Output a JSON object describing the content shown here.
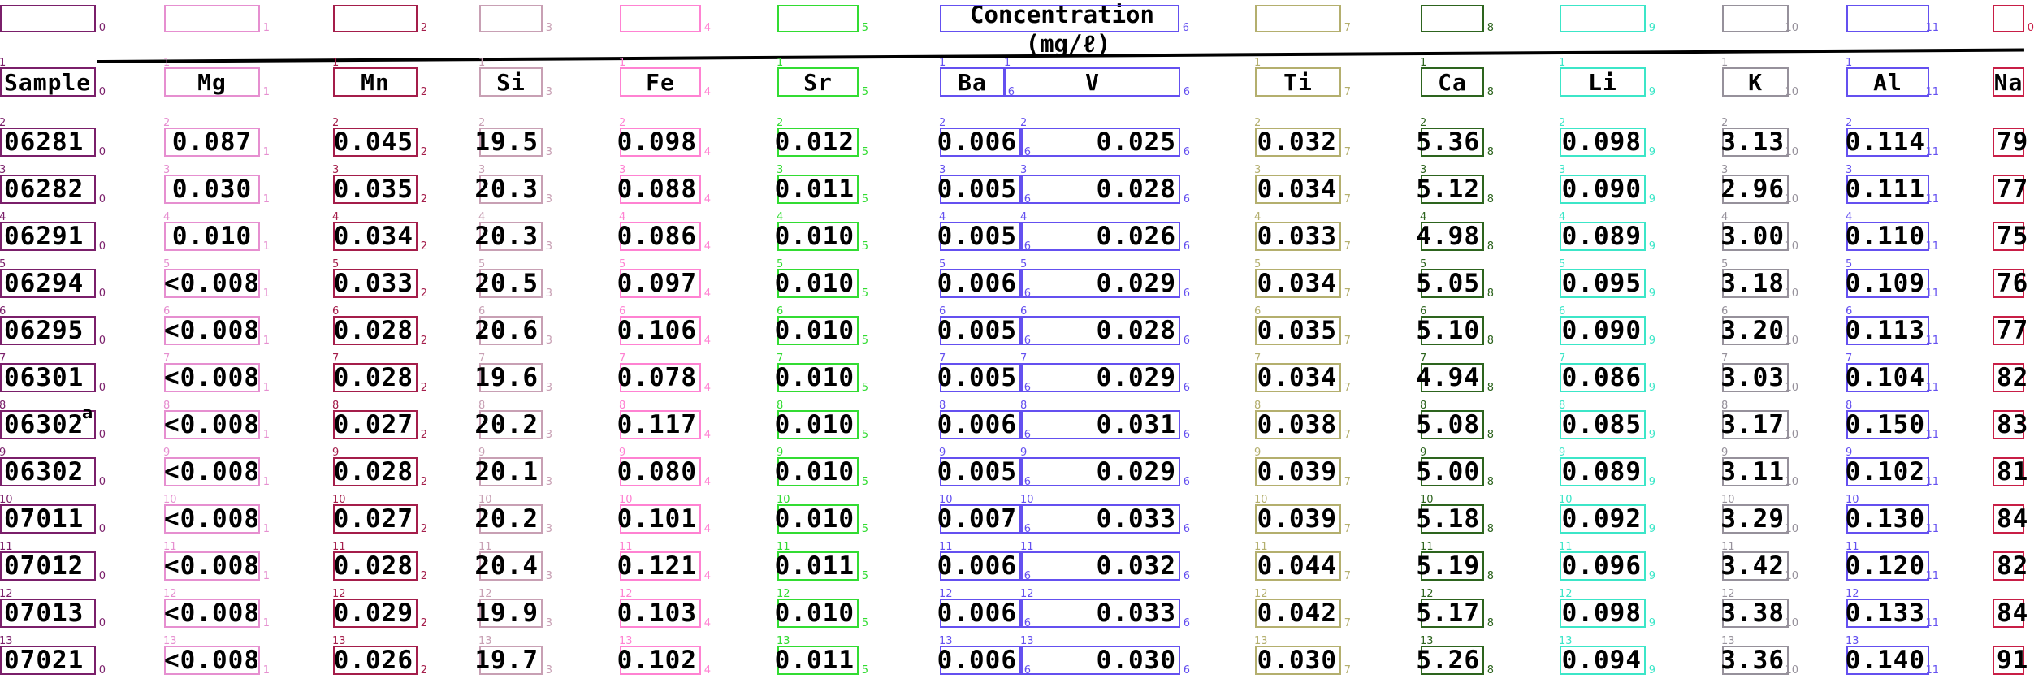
{
  "concentration_title": "Concentration",
  "concentration_unit": "(mg/ℓ)",
  "footnote_mark": "a",
  "palette": [
    "#7a1f6a",
    "#e68fd0",
    "#a41d4a",
    "#c8a0b4",
    "#ff82d2",
    "#32dc32",
    "#6450f0",
    "#b4af6e",
    "#2d641e",
    "#3ce6c8",
    "#96919b",
    "#6450f0",
    "#c81e46"
  ],
  "headers": [
    "Sample",
    "Mg",
    "Mn",
    "Si",
    "Fe",
    "Sr",
    "Ba",
    "V",
    "Ti",
    "Ca",
    "Li",
    "K",
    "Al",
    "Na"
  ],
  "rows": [
    [
      "06281",
      "0.087",
      "0.045",
      "19.5",
      "0.098",
      "0.012",
      "0.006",
      "0.025",
      "0.032",
      "5.36",
      "0.098",
      "3.13",
      "0.114",
      "79"
    ],
    [
      "06282",
      "0.030",
      "0.035",
      "20.3",
      "0.088",
      "0.011",
      "0.005",
      "0.028",
      "0.034",
      "5.12",
      "0.090",
      "2.96",
      "0.111",
      "77"
    ],
    [
      "06291",
      "0.010",
      "0.034",
      "20.3",
      "0.086",
      "0.010",
      "0.005",
      "0.026",
      "0.033",
      "4.98",
      "0.089",
      "3.00",
      "0.110",
      "75"
    ],
    [
      "06294",
      "<0.008",
      "0.033",
      "20.5",
      "0.097",
      "0.010",
      "0.006",
      "0.029",
      "0.034",
      "5.05",
      "0.095",
      "3.18",
      "0.109",
      "76"
    ],
    [
      "06295",
      "<0.008",
      "0.028",
      "20.6",
      "0.106",
      "0.010",
      "0.005",
      "0.028",
      "0.035",
      "5.10",
      "0.090",
      "3.20",
      "0.113",
      "77"
    ],
    [
      "06301",
      "<0.008",
      "0.028",
      "19.6",
      "0.078",
      "0.010",
      "0.005",
      "0.029",
      "0.034",
      "4.94",
      "0.086",
      "3.03",
      "0.104",
      "82"
    ],
    [
      "06302",
      "<0.008",
      "0.027",
      "20.2",
      "0.117",
      "0.010",
      "0.006",
      "0.031",
      "0.038",
      "5.08",
      "0.085",
      "3.17",
      "0.150",
      "83"
    ],
    [
      "06302",
      "<0.008",
      "0.028",
      "20.1",
      "0.080",
      "0.010",
      "0.005",
      "0.029",
      "0.039",
      "5.00",
      "0.089",
      "3.11",
      "0.102",
      "81"
    ],
    [
      "07011",
      "<0.008",
      "0.027",
      "20.2",
      "0.101",
      "0.010",
      "0.007",
      "0.033",
      "0.039",
      "5.18",
      "0.092",
      "3.29",
      "0.130",
      "84"
    ],
    [
      "07012",
      "<0.008",
      "0.028",
      "20.4",
      "0.121",
      "0.011",
      "0.006",
      "0.032",
      "0.044",
      "5.19",
      "0.096",
      "3.42",
      "0.120",
      "82"
    ],
    [
      "07013",
      "<0.008",
      "0.029",
      "19.9",
      "0.103",
      "0.010",
      "0.006",
      "0.033",
      "0.042",
      "5.17",
      "0.098",
      "3.38",
      "0.133",
      "84"
    ],
    [
      "07021",
      "<0.008",
      "0.026",
      "19.7",
      "0.102",
      "0.011",
      "0.006",
      "0.030",
      "0.030",
      "5.26",
      "0.094",
      "3.36",
      "0.140",
      "91"
    ]
  ]
}
